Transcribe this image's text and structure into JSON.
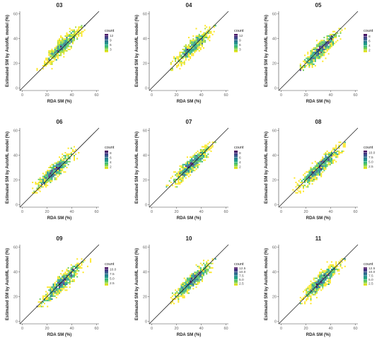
{
  "chart_data": [
    {
      "type": "heatmap",
      "title": "03",
      "xlabel": "RDA SM (%)",
      "ylabel": "Estimated SM by AutoML model (%)",
      "xlim": [
        -2,
        62
      ],
      "ylim": [
        -2,
        62
      ],
      "xticks": [
        0,
        20,
        40,
        60
      ],
      "yticks": [
        0,
        20,
        40,
        60
      ],
      "identity_line": true,
      "grid": false,
      "legend": {
        "title": "count",
        "position": "right",
        "ticks": [
          3,
          6,
          9,
          12
        ],
        "range": [
          1,
          13
        ]
      },
      "cloud": {
        "x_range": [
          12,
          50
        ],
        "y_range": [
          14,
          50
        ],
        "center": [
          33,
          34
        ],
        "spread": 7,
        "points": 600
      }
    },
    {
      "type": "heatmap",
      "title": "04",
      "xlabel": "RDA SM (%)",
      "ylabel": "Estimated SM by AutoML model (%)",
      "xlim": [
        -2,
        62
      ],
      "ylim": [
        -2,
        62
      ],
      "xticks": [
        0,
        20,
        40,
        60
      ],
      "yticks": [
        0,
        20,
        40,
        60
      ],
      "identity_line": true,
      "grid": false,
      "legend": {
        "title": "count",
        "position": "right",
        "ticks": [
          3,
          6,
          9,
          12
        ],
        "range": [
          1,
          13
        ]
      },
      "cloud": {
        "x_range": [
          15,
          52
        ],
        "y_range": [
          14,
          50
        ],
        "center": [
          33,
          33
        ],
        "spread": 7,
        "points": 600
      }
    },
    {
      "type": "heatmap",
      "title": "05",
      "xlabel": "RDA SM (%)",
      "ylabel": "Estimated SM by AutoML model (%)",
      "xlim": [
        -2,
        62
      ],
      "ylim": [
        -2,
        62
      ],
      "xticks": [
        0,
        20,
        40,
        60
      ],
      "yticks": [
        0,
        20,
        40,
        60
      ],
      "identity_line": true,
      "grid": false,
      "legend": {
        "title": "count",
        "position": "right",
        "ticks": [
          2,
          4,
          6,
          8
        ],
        "range": [
          1,
          9
        ]
      },
      "cloud": {
        "x_range": [
          15,
          52
        ],
        "y_range": [
          14,
          48
        ],
        "center": [
          32,
          31
        ],
        "spread": 7,
        "points": 600
      }
    },
    {
      "type": "heatmap",
      "title": "06",
      "xlabel": "RDA SM (%)",
      "ylabel": "Estimated SM by AutoML model (%)",
      "xlim": [
        -2,
        62
      ],
      "ylim": [
        -2,
        62
      ],
      "xticks": [
        0,
        20,
        40,
        60
      ],
      "yticks": [
        0,
        20,
        40,
        60
      ],
      "identity_line": true,
      "grid": false,
      "legend": {
        "title": "count",
        "position": "right",
        "ticks": [
          2,
          4,
          6,
          8
        ],
        "range": [
          1,
          9
        ]
      },
      "cloud": {
        "x_range": [
          8,
          48
        ],
        "y_range": [
          10,
          48
        ],
        "center": [
          26,
          27
        ],
        "spread": 7,
        "points": 600
      }
    },
    {
      "type": "heatmap",
      "title": "07",
      "xlabel": "RDA SM (%)",
      "ylabel": "Estimated SM by AutoML model (%)",
      "xlim": [
        -2,
        62
      ],
      "ylim": [
        -2,
        62
      ],
      "xticks": [
        0,
        20,
        40,
        60
      ],
      "yticks": [
        0,
        20,
        40,
        60
      ],
      "identity_line": true,
      "grid": false,
      "legend": {
        "title": "count",
        "position": "right",
        "ticks": [
          2,
          4,
          6,
          8
        ],
        "range": [
          1,
          9
        ]
      },
      "cloud": {
        "x_range": [
          12,
          52
        ],
        "y_range": [
          14,
          50
        ],
        "center": [
          32,
          32
        ],
        "spread": 7,
        "points": 600
      }
    },
    {
      "type": "heatmap",
      "title": "08",
      "xlabel": "RDA SM (%)",
      "ylabel": "Estimated SM by AutoML model (%)",
      "xlim": [
        -2,
        62
      ],
      "ylim": [
        -2,
        62
      ],
      "xticks": [
        0,
        20,
        40,
        60
      ],
      "yticks": [
        0,
        20,
        40,
        60
      ],
      "identity_line": true,
      "grid": false,
      "legend": {
        "title": "count",
        "position": "right",
        "ticks": [
          2.5,
          5.0,
          7.5,
          10.0
        ],
        "range": [
          1,
          11
        ]
      },
      "cloud": {
        "x_range": [
          10,
          52
        ],
        "y_range": [
          10,
          50
        ],
        "center": [
          31,
          30
        ],
        "spread": 8,
        "points": 650
      }
    },
    {
      "type": "heatmap",
      "title": "09",
      "xlabel": "RDA SM (%)",
      "ylabel": "Estimated SM by AutoML model (%)",
      "xlim": [
        -2,
        62
      ],
      "ylim": [
        -2,
        62
      ],
      "xticks": [
        0,
        20,
        40,
        60
      ],
      "yticks": [
        0,
        20,
        40,
        60
      ],
      "identity_line": true,
      "grid": false,
      "legend": {
        "title": "count",
        "position": "right",
        "ticks": [
          2.5,
          5.0,
          7.5,
          10.0
        ],
        "range": [
          1,
          11
        ]
      },
      "cloud": {
        "x_range": [
          12,
          55
        ],
        "y_range": [
          12,
          50
        ],
        "center": [
          32,
          31
        ],
        "spread": 8,
        "points": 650
      }
    },
    {
      "type": "heatmap",
      "title": "10",
      "xlabel": "RDA SM (%)",
      "ylabel": "Estimated SM by AutoML model (%)",
      "xlim": [
        -2,
        62
      ],
      "ylim": [
        -2,
        62
      ],
      "xticks": [
        0,
        20,
        40,
        60
      ],
      "yticks": [
        0,
        20,
        40,
        60
      ],
      "identity_line": true,
      "grid": false,
      "legend": {
        "title": "count",
        "position": "right",
        "ticks": [
          2.5,
          5.0,
          7.5,
          10.0,
          12.5
        ],
        "range": [
          1,
          13
        ]
      },
      "cloud": {
        "x_range": [
          15,
          52
        ],
        "y_range": [
          14,
          50
        ],
        "center": [
          33,
          33
        ],
        "spread": 7,
        "points": 600
      }
    },
    {
      "type": "heatmap",
      "title": "11",
      "xlabel": "RDA SM (%)",
      "ylabel": "Estimated SM by AutoML model (%)",
      "xlim": [
        -2,
        62
      ],
      "ylim": [
        -2,
        62
      ],
      "xticks": [
        0,
        20,
        40,
        60
      ],
      "yticks": [
        0,
        20,
        40,
        60
      ],
      "identity_line": true,
      "grid": false,
      "legend": {
        "title": "count",
        "position": "right",
        "ticks": [
          2.5,
          5.0,
          7.5,
          10.0,
          12.5
        ],
        "range": [
          1,
          13
        ]
      },
      "cloud": {
        "x_range": [
          15,
          52
        ],
        "y_range": [
          14,
          50
        ],
        "center": [
          33,
          33
        ],
        "spread": 7,
        "points": 600
      }
    }
  ],
  "colors": {
    "identity_line": "#222222",
    "axis": "#444444",
    "viridis": [
      "#fde725",
      "#b5de2b",
      "#6ece58",
      "#35b779",
      "#1f9e89",
      "#26828e",
      "#31688e",
      "#3e4989",
      "#482878",
      "#440154"
    ]
  }
}
